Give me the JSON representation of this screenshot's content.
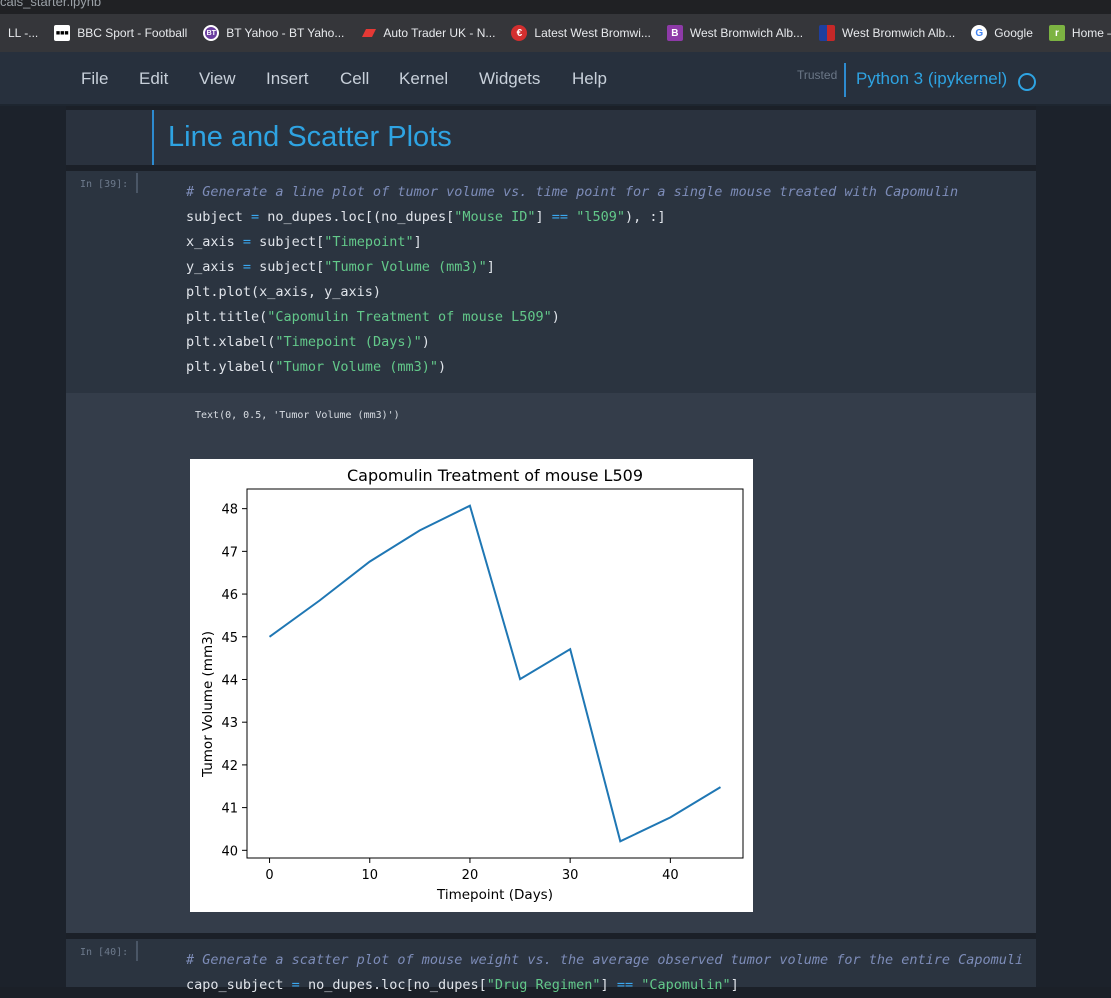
{
  "window": {
    "title": "cals_starter.ipynb"
  },
  "bookmarks": [
    {
      "label": "LL -...",
      "icon": "",
      "color": ""
    },
    {
      "label": "BBC Sport - Football",
      "icon": "bbc-icon",
      "color": "#ffffff"
    },
    {
      "label": "BT Yahoo - BT Yaho...",
      "icon": "bt-icon",
      "color": "#6b3fa0"
    },
    {
      "label": "Auto Trader UK - N...",
      "icon": "autotrader-icon",
      "color": "#e53935"
    },
    {
      "label": "Latest West Bromwi...",
      "icon": "e-logo-icon",
      "color": "#d32f2f"
    },
    {
      "label": "West Bromwich Alb...",
      "icon": "b-logo-icon",
      "color": "#8e3aa8"
    },
    {
      "label": "West Bromwich Alb...",
      "icon": "flag-icon",
      "color": "#1e3f9e"
    },
    {
      "label": "Google",
      "icon": "google-icon",
      "color": "#ffffff"
    },
    {
      "label": "Home — le",
      "icon": "r-logo-icon",
      "color": "#7cb342"
    }
  ],
  "menu": {
    "items": [
      "File",
      "Edit",
      "View",
      "Insert",
      "Cell",
      "Kernel",
      "Widgets",
      "Help"
    ],
    "trusted": "Trusted",
    "kernel": "Python 3 (ipykernel)"
  },
  "markdown": {
    "title": "Line and Scatter Plots"
  },
  "cell1": {
    "prompt": "In [39]:",
    "output_text": "Text(0, 0.5, 'Tumor Volume (mm3)')"
  },
  "cell2": {
    "prompt": "In [40]:"
  },
  "chart_data": {
    "type": "line",
    "title": "Capomulin Treatment of mouse L509",
    "xlabel": "Timepoint (Days)",
    "ylabel": "Tumor Volume (mm3)",
    "x": [
      0,
      5,
      10,
      15,
      20,
      25,
      30,
      35,
      40,
      45
    ],
    "y": [
      45.0,
      45.85,
      46.76,
      47.49,
      48.07,
      44.01,
      44.71,
      40.21,
      40.77,
      41.48
    ],
    "xticks": [
      0,
      10,
      20,
      30,
      40
    ],
    "yticks": [
      40,
      41,
      42,
      43,
      44,
      45,
      46,
      47,
      48
    ],
    "xlim": [
      -2.25,
      47.25
    ],
    "ylim": [
      39.82,
      48.46
    ],
    "grid": false,
    "series_color": "#1f77b4"
  }
}
